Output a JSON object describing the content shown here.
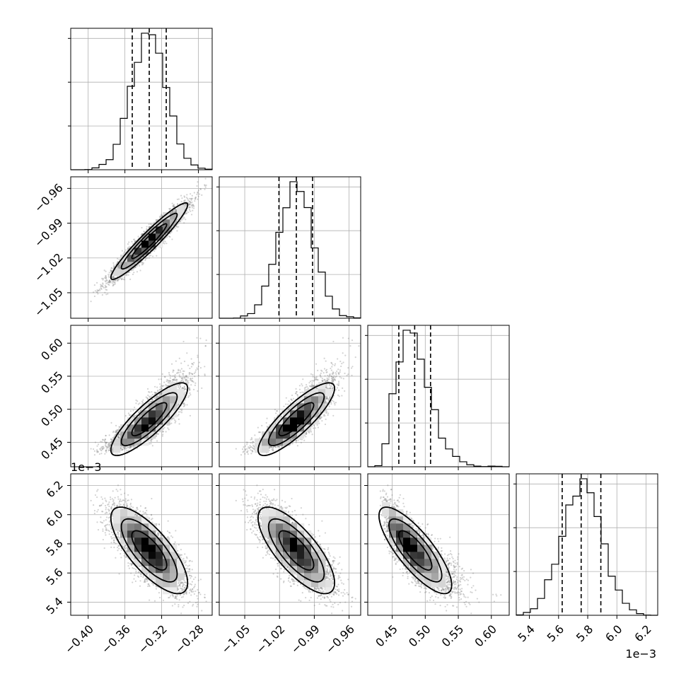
{
  "chart_data": {
    "type": "corner",
    "grid": true,
    "colors": {
      "line": "#000000",
      "grid": "#b0b0b0",
      "scatter": "#808080",
      "density": "#000000"
    },
    "params": [
      {
        "ticks": [
          -0.4,
          -0.36,
          -0.32,
          -0.28
        ],
        "tick_labels": [
          "−0.40",
          "−0.36",
          "−0.32",
          "−0.28"
        ],
        "range": [
          -0.419,
          -0.265
        ],
        "mean": -0.3335,
        "std": 0.019,
        "shape": "normal",
        "quantiles": [
          -0.352,
          -0.3335,
          -0.315
        ],
        "offset": ""
      },
      {
        "ticks": [
          -1.05,
          -1.02,
          -0.99,
          -0.96
        ],
        "tick_labels": [
          "−1.05",
          "−1.02",
          "−0.99",
          "−0.96"
        ],
        "range": [
          -1.072,
          -0.95
        ],
        "mean": -1.0055,
        "std": 0.015,
        "shape": "normal",
        "quantiles": [
          -1.0205,
          -1.0055,
          -0.9915
        ],
        "offset": ""
      },
      {
        "ticks": [
          0.45,
          0.5,
          0.55,
          0.6
        ],
        "tick_labels": [
          "0.45",
          "0.50",
          "0.55",
          "0.60"
        ],
        "range": [
          0.413,
          0.627
        ],
        "mean": 0.485,
        "std": 0.025,
        "shape": "skew",
        "quantiles": [
          0.46,
          0.484,
          0.508
        ],
        "offset": ""
      },
      {
        "ticks": [
          5.4,
          5.6,
          5.8,
          6.0,
          6.2
        ],
        "tick_labels": [
          "5.4",
          "5.6",
          "5.8",
          "6.0",
          "6.2"
        ],
        "range": [
          5.31,
          6.28
        ],
        "mean": 5.755,
        "std": 0.135,
        "shape": "normal",
        "quantiles": [
          5.625,
          5.755,
          5.89
        ],
        "offset": "1e−3"
      }
    ],
    "correlations": {
      "1_0": 0.95,
      "2_0": 0.85,
      "2_1": 0.85,
      "3_0": -0.75,
      "3_1": -0.75,
      "3_2": -0.8
    }
  }
}
